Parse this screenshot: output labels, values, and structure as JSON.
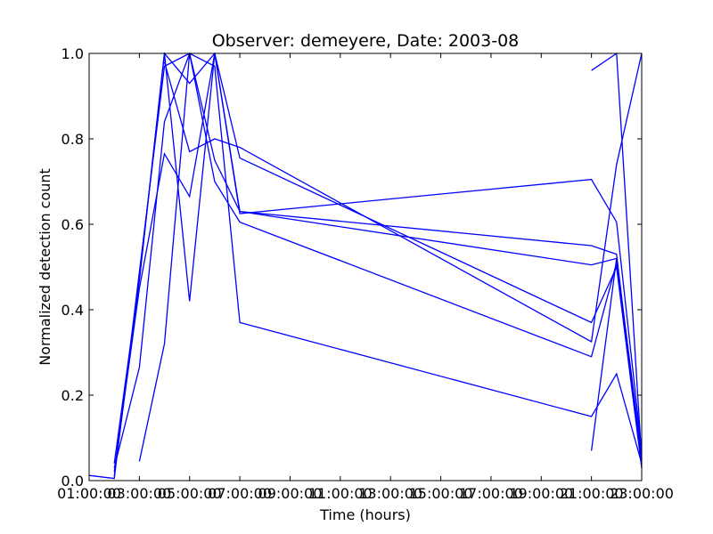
{
  "chart_data": {
    "type": "line",
    "title": "Observer: demeyere, Date: 2003-08",
    "xlabel": "Time (hours)",
    "ylabel": "Normalized detection count",
    "xlim": [
      1,
      23
    ],
    "ylim": [
      0,
      1
    ],
    "x_ticks": [
      1,
      3,
      5,
      7,
      9,
      11,
      13,
      15,
      17,
      19,
      21,
      23
    ],
    "x_tick_labels": [
      "01:00:00",
      "03:00:00",
      "05:00:00",
      "07:00:00",
      "09:00:00",
      "11:00:00",
      "13:00:00",
      "15:00:00",
      "17:00:00",
      "19:00:00",
      "21:00:00",
      "23:00:00"
    ],
    "y_ticks": [
      0,
      0.2,
      0.4,
      0.6,
      0.8,
      1
    ],
    "y_tick_labels": [
      "0.0",
      "0.2",
      "0.4",
      "0.6",
      "0.8",
      "1.0"
    ],
    "line_color": "#0000ff",
    "grid": false,
    "series": [
      {
        "points": [
          [
            1,
            0.012
          ],
          [
            2,
            0.005
          ],
          [
            4,
            0.97
          ],
          [
            5,
            1.0
          ],
          [
            6,
            0.75
          ],
          [
            7,
            0.63
          ],
          [
            21,
            0.55
          ],
          [
            22,
            0.53
          ],
          [
            23,
            0.03
          ]
        ]
      },
      {
        "points": [
          [
            2,
            0.04
          ],
          [
            3,
            0.47
          ],
          [
            4,
            1.0
          ],
          [
            5,
            0.93
          ],
          [
            6,
            1.0
          ],
          [
            7,
            0.63
          ],
          [
            21,
            0.505
          ],
          [
            22,
            0.52
          ],
          [
            23,
            0.06
          ]
        ]
      },
      {
        "points": [
          [
            2,
            0.02
          ],
          [
            3,
            0.45
          ],
          [
            4,
            0.765
          ],
          [
            5,
            0.665
          ],
          [
            6,
            1.0
          ],
          [
            7,
            0.755
          ],
          [
            21,
            0.37
          ],
          [
            22,
            0.5
          ],
          [
            23,
            0.03
          ]
        ]
      },
      {
        "points": [
          [
            3,
            0.045
          ],
          [
            4,
            0.32
          ],
          [
            5,
            1.0
          ],
          [
            6,
            0.7
          ],
          [
            7,
            0.605
          ],
          [
            21,
            0.29
          ],
          [
            22,
            0.51
          ],
          [
            23,
            0.05
          ]
        ]
      },
      {
        "points": [
          [
            2,
            0.03
          ],
          [
            3,
            0.265
          ],
          [
            4,
            0.84
          ],
          [
            5,
            1.0
          ],
          [
            6,
            0.97
          ],
          [
            7,
            0.37
          ],
          [
            21,
            0.15
          ],
          [
            22,
            0.25
          ],
          [
            23,
            0.04
          ]
        ]
      },
      {
        "points": [
          [
            2,
            0.01
          ],
          [
            3,
            0.47
          ],
          [
            4,
            1.0
          ],
          [
            5,
            0.42
          ],
          [
            6,
            1.0
          ],
          [
            7,
            0.625
          ],
          [
            21,
            0.705
          ],
          [
            22,
            0.605
          ],
          [
            23,
            0.07
          ]
        ]
      },
      {
        "points": [
          [
            4,
            0.98
          ],
          [
            5,
            0.77
          ],
          [
            6,
            0.8
          ],
          [
            7,
            0.78
          ],
          [
            21,
            0.325
          ],
          [
            22,
            0.74
          ],
          [
            23,
            1.0
          ]
        ]
      },
      {
        "points": [
          [
            21,
            0.96
          ],
          [
            22,
            1.0
          ],
          [
            23,
            0.05
          ]
        ]
      },
      {
        "points": [
          [
            21,
            0.07
          ],
          [
            22,
            0.52
          ],
          [
            23,
            0.04
          ]
        ]
      }
    ]
  }
}
